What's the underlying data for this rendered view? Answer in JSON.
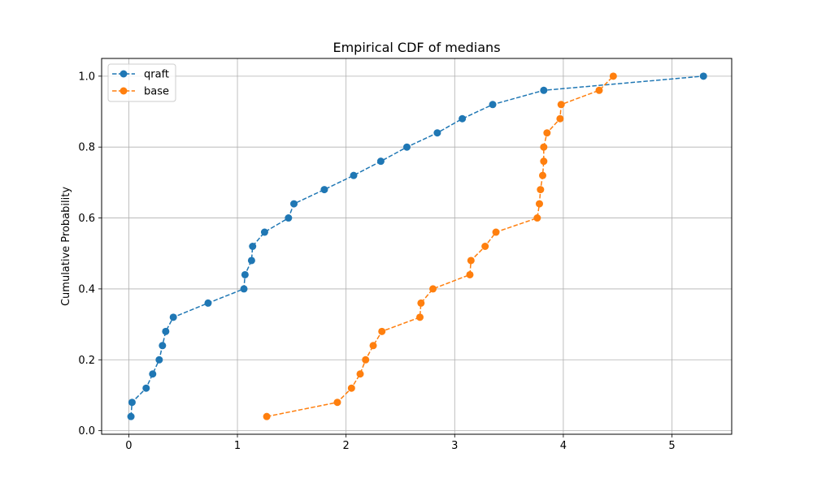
{
  "chart_data": {
    "type": "line",
    "title": "Empirical CDF of medians",
    "xlabel": "",
    "ylabel": "Cumulative Probability",
    "xlim": [
      -0.25,
      5.55
    ],
    "ylim": [
      -0.01,
      1.05
    ],
    "xticks": [
      0,
      1,
      2,
      3,
      4,
      5
    ],
    "yticks": [
      0.0,
      0.2,
      0.4,
      0.6,
      0.8,
      1.0
    ],
    "xtick_labels": [
      "0",
      "1",
      "2",
      "3",
      "4",
      "5"
    ],
    "ytick_labels": [
      "0.0",
      "0.2",
      "0.4",
      "0.6",
      "0.8",
      "1.0"
    ],
    "grid": true,
    "legend_position": "upper-left",
    "series": [
      {
        "name": "qraft",
        "color": "#1f77b4",
        "line_style": "dashed",
        "marker": "circle",
        "x": [
          0.02,
          0.03,
          0.16,
          0.22,
          0.28,
          0.31,
          0.34,
          0.41,
          0.73,
          1.06,
          1.07,
          1.13,
          1.14,
          1.25,
          1.47,
          1.52,
          1.8,
          2.07,
          2.32,
          2.56,
          2.84,
          3.07,
          3.35,
          3.82,
          5.29
        ],
        "y": [
          0.04,
          0.08,
          0.12,
          0.16,
          0.2,
          0.24,
          0.28,
          0.32,
          0.36,
          0.4,
          0.44,
          0.48,
          0.52,
          0.56,
          0.6,
          0.64,
          0.68,
          0.72,
          0.76,
          0.8,
          0.84,
          0.88,
          0.92,
          0.96,
          1.0
        ]
      },
      {
        "name": "base",
        "color": "#ff7f0e",
        "line_style": "dashed",
        "marker": "circle",
        "x": [
          1.27,
          1.92,
          2.05,
          2.13,
          2.18,
          2.25,
          2.33,
          2.68,
          2.69,
          2.8,
          3.14,
          3.15,
          3.28,
          3.38,
          3.76,
          3.78,
          3.79,
          3.81,
          3.82,
          3.82,
          3.85,
          3.97,
          3.98,
          4.33,
          4.46
        ],
        "y": [
          0.04,
          0.08,
          0.12,
          0.16,
          0.2,
          0.24,
          0.28,
          0.32,
          0.36,
          0.4,
          0.44,
          0.48,
          0.52,
          0.56,
          0.6,
          0.64,
          0.68,
          0.72,
          0.76,
          0.8,
          0.84,
          0.88,
          0.92,
          0.96,
          1.0
        ]
      }
    ]
  }
}
